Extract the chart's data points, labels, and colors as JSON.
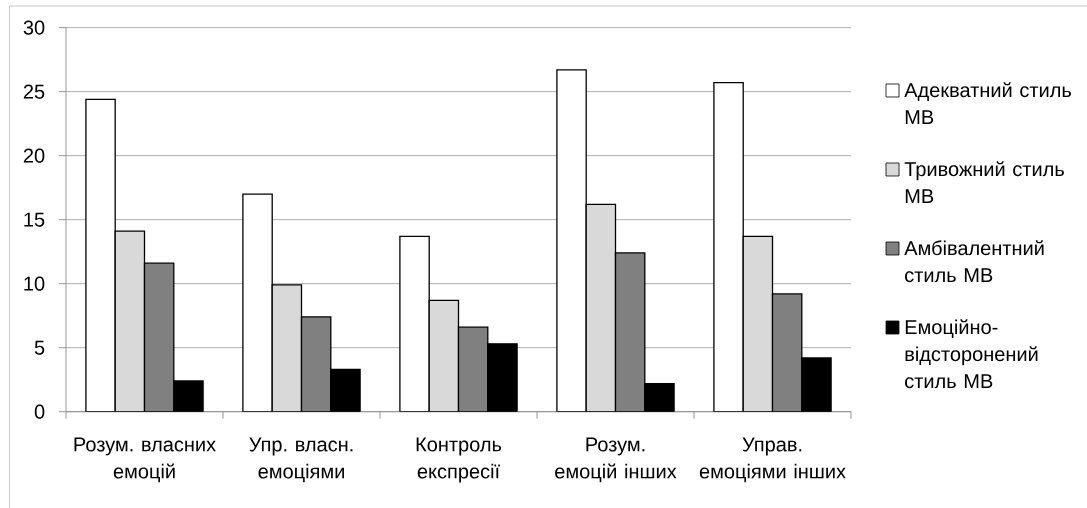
{
  "chart_data": {
    "type": "bar",
    "categories": [
      "Розум. власних емоцій",
      "Упр. власн. емоціями",
      "Контроль експресії",
      "Розум. емоцій інших",
      "Управ. емоціями інших"
    ],
    "series": [
      {
        "name": "Адекватний стиль МВ",
        "color": "#ffffff",
        "values": [
          24.4,
          17.0,
          13.7,
          26.7,
          25.7
        ]
      },
      {
        "name": "Тривожний стиль МВ",
        "color": "#d9d9d9",
        "values": [
          14.1,
          9.9,
          8.7,
          16.2,
          13.7
        ]
      },
      {
        "name": "Амбівалентний стиль МВ",
        "color": "#808080",
        "values": [
          11.6,
          7.4,
          6.6,
          12.4,
          9.2
        ]
      },
      {
        "name": "Емоційно-відсторонений стиль МВ",
        "color": "#000000",
        "values": [
          2.4,
          3.3,
          5.3,
          2.2,
          4.2
        ]
      }
    ],
    "ylim": [
      0,
      30
    ],
    "yticks": [
      0,
      5,
      10,
      15,
      20,
      25,
      30
    ],
    "grid": "y",
    "legend": "right"
  }
}
